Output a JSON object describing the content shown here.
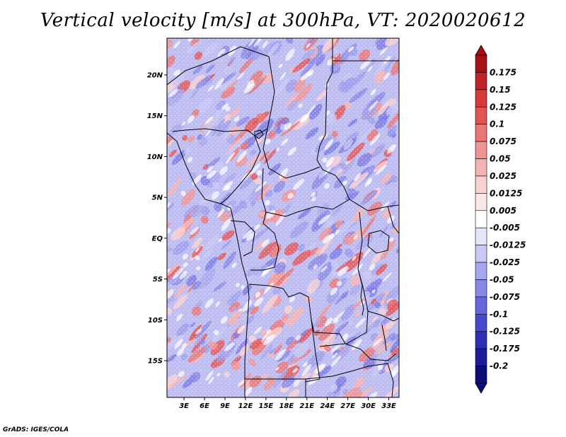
{
  "title": "Vertical velocity [m/s] at 300hPa, VT: 2020020612",
  "credit": "GrADS: IGES/COLA",
  "map": {
    "lat_labels": [
      "20N",
      "15N",
      "10N",
      "5N",
      "EQ",
      "5S",
      "10S",
      "15S"
    ],
    "lon_labels": [
      "3E",
      "6E",
      "9E",
      "12E",
      "15E",
      "18E",
      "21E",
      "24E",
      "27E",
      "30E",
      "33E"
    ],
    "lat_range": [
      -19.5,
      24.5
    ],
    "lon_range": [
      0.5,
      34.5
    ]
  },
  "colorbar": {
    "labels": [
      "0.175",
      "0.15",
      "0.125",
      "0.1",
      "0.075",
      "0.05",
      "0.025",
      "0.0125",
      "0.005",
      "-0.005",
      "-0.0125",
      "-0.025",
      "-0.05",
      "-0.075",
      "-0.1",
      "-0.125",
      "-0.175",
      "-0.2"
    ],
    "colors": [
      "#a50f15",
      "#c0232b",
      "#d63a3a",
      "#e25555",
      "#ea7575",
      "#f09595",
      "#f5b4b4",
      "#f9d0d0",
      "#fce8e8",
      "#ffffff",
      "#e6e6fb",
      "#c8c8f5",
      "#a8a8ee",
      "#8888e6",
      "#6666dc",
      "#4848cc",
      "#2e2eb4",
      "#1c1c98",
      "#0d0d78"
    ],
    "top_color": "#a50f15",
    "bottom_color": "#0d0d78"
  }
}
